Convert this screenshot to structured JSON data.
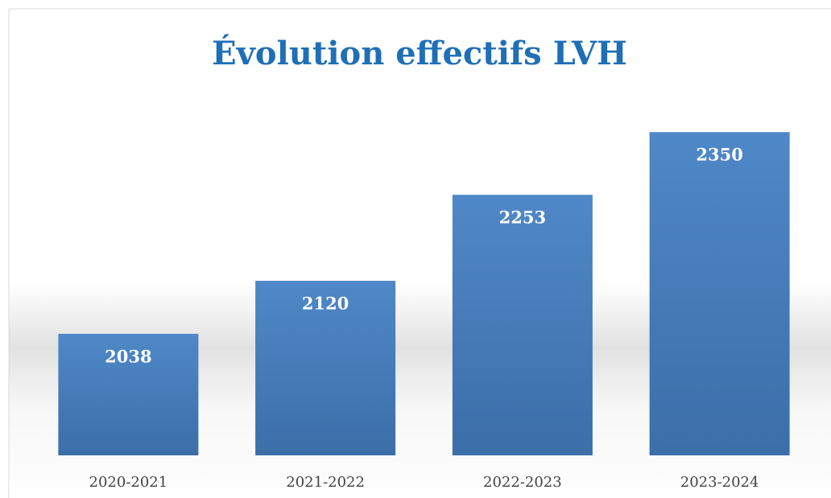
{
  "chart_data": {
    "type": "bar",
    "title": "Évolution effectifs LVH",
    "categories": [
      "2020-2021",
      "2021-2022",
      "2022-2023",
      "2023-2024"
    ],
    "values": [
      2038,
      2120,
      2253,
      2350
    ],
    "color": "#4a80bf",
    "ylim": [
      1850,
      2400
    ]
  }
}
